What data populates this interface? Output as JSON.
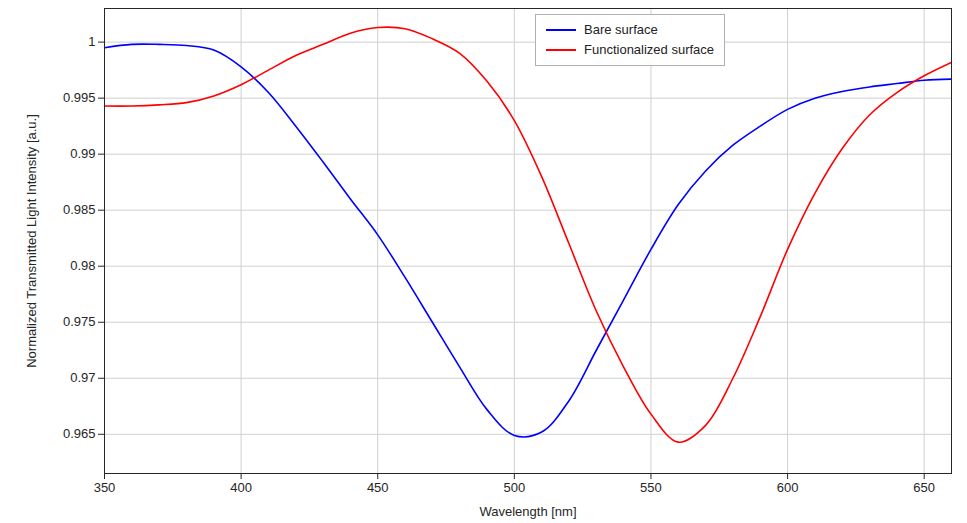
{
  "chart_data": {
    "type": "line",
    "x_label": "Wavelength [nm]",
    "y_label": "Normalized Transmitted Light Intensity [a.u.]",
    "x": [
      350,
      360,
      370,
      380,
      390,
      400,
      410,
      420,
      430,
      440,
      450,
      460,
      470,
      480,
      490,
      500,
      510,
      520,
      530,
      540,
      550,
      560,
      570,
      580,
      590,
      600,
      610,
      620,
      630,
      640,
      650,
      660
    ],
    "series": [
      {
        "name": "Bare surface",
        "color": "#0000ff",
        "values": [
          0.9995,
          0.9998,
          0.9998,
          0.9997,
          0.9993,
          0.9978,
          0.9955,
          0.9925,
          0.9893,
          0.986,
          0.9828,
          0.979,
          0.975,
          0.971,
          0.9672,
          0.9649,
          0.9652,
          0.968,
          0.9725,
          0.977,
          0.9815,
          0.9855,
          0.9885,
          0.9908,
          0.9925,
          0.994,
          0.995,
          0.9956,
          0.996,
          0.9963,
          0.9966,
          0.9967
        ]
      },
      {
        "name": "Functionalized surface",
        "color": "#ff0000",
        "values": [
          0.9943,
          0.9943,
          0.9944,
          0.9946,
          0.9952,
          0.9962,
          0.9975,
          0.9988,
          0.9998,
          1.0008,
          1.0013,
          1.0012,
          1.0003,
          0.999,
          0.9965,
          0.993,
          0.988,
          0.982,
          0.976,
          0.971,
          0.9668,
          0.9643,
          0.9658,
          0.97,
          0.9755,
          0.9815,
          0.9865,
          0.9905,
          0.9935,
          0.9955,
          0.997,
          0.9982
        ]
      }
    ],
    "xlim": [
      350,
      660
    ],
    "xticks": [
      350,
      400,
      450,
      500,
      550,
      600,
      650
    ],
    "ylim": [
      0.9615,
      1.003
    ],
    "yticks": [
      0.965,
      0.97,
      0.975,
      0.98,
      0.985,
      0.99,
      0.995,
      1
    ],
    "grid": true,
    "legend": "top"
  }
}
